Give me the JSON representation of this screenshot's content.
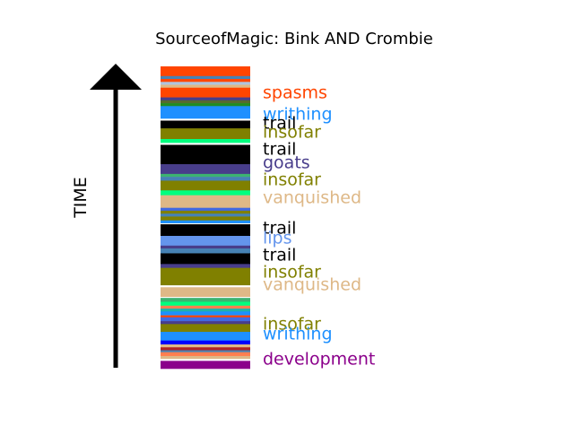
{
  "chart_data": {
    "type": "bar",
    "title": "SourceofMagic: Bink AND Crombie",
    "ylabel": "TIME",
    "xlabel": "",
    "stripes": [
      {
        "color": "#ff4500",
        "h": 10
      },
      {
        "color": "#4682b4",
        "h": 3
      },
      {
        "color": "#ff4500",
        "h": 3
      },
      {
        "color": "#b0c4de",
        "h": 3
      },
      {
        "color": "#deb887",
        "h": 3
      },
      {
        "color": "#ff4500",
        "h": 10
      },
      {
        "color": "#483d8b",
        "h": 3
      },
      {
        "color": "#556b2f",
        "h": 3
      },
      {
        "color": "#228b22",
        "h": 3
      },
      {
        "color": "#1e90ff",
        "h": 13
      },
      {
        "color": "#ffffff",
        "h": 2
      },
      {
        "color": "#000000",
        "h": 8
      },
      {
        "color": "#808000",
        "h": 11
      },
      {
        "color": "#00ff7f",
        "h": 4
      },
      {
        "color": "#ffffff",
        "h": 2
      },
      {
        "color": "#000000",
        "h": 20
      },
      {
        "color": "#483d8b",
        "h": 10
      },
      {
        "color": "#3cb371",
        "h": 3
      },
      {
        "color": "#4682b4",
        "h": 4
      },
      {
        "color": "#808000",
        "h": 10
      },
      {
        "color": "#00ff7f",
        "h": 5
      },
      {
        "color": "#deb887",
        "h": 13
      },
      {
        "color": "#4169e1",
        "h": 3
      },
      {
        "color": "#808000",
        "h": 3
      },
      {
        "color": "#4682b4",
        "h": 3
      },
      {
        "color": "#808000",
        "h": 4
      },
      {
        "color": "#1e90ff",
        "h": 3
      },
      {
        "color": "#ffffff",
        "h": 1
      },
      {
        "color": "#000000",
        "h": 12
      },
      {
        "color": "#6495ed",
        "h": 10
      },
      {
        "color": "#483d8b",
        "h": 3
      },
      {
        "color": "#4682b4",
        "h": 5
      },
      {
        "color": "#000000",
        "h": 11
      },
      {
        "color": "#483d8b",
        "h": 4
      },
      {
        "color": "#808000",
        "h": 18
      },
      {
        "color": "#ffffff",
        "h": 2
      },
      {
        "color": "#deb887",
        "h": 10
      },
      {
        "color": "#ffffff",
        "h": 1
      },
      {
        "color": "#3cb371",
        "h": 4
      },
      {
        "color": "#00ff7f",
        "h": 4
      },
      {
        "color": "#ff7f50",
        "h": 3
      },
      {
        "color": "#20b2aa",
        "h": 3
      },
      {
        "color": "#1e90ff",
        "h": 4
      },
      {
        "color": "#ff4500",
        "h": 2
      },
      {
        "color": "#4169e1",
        "h": 4
      },
      {
        "color": "#483d8b",
        "h": 3
      },
      {
        "color": "#808000",
        "h": 8
      },
      {
        "color": "#1e90ff",
        "h": 9
      },
      {
        "color": "#0000ff",
        "h": 4
      },
      {
        "color": "#deb887",
        "h": 3
      },
      {
        "color": "#b22222",
        "h": 3
      },
      {
        "color": "#4682b4",
        "h": 2
      },
      {
        "color": "#ff7f50",
        "h": 4
      },
      {
        "color": "#deb887",
        "h": 3
      },
      {
        "color": "#ffffff",
        "h": 2
      },
      {
        "color": "#8b008b",
        "h": 8
      }
    ],
    "labels": [
      {
        "text": "spasms",
        "color": "#ff4500",
        "pos": 104
      },
      {
        "text": "writhing",
        "color": "#1e90ff",
        "pos": 128
      },
      {
        "text": "trail",
        "color": "#000000",
        "pos": 138
      },
      {
        "text": "insofar",
        "color": "#808000",
        "pos": 148
      },
      {
        "text": "trail",
        "color": "#000000",
        "pos": 167
      },
      {
        "text": "goats",
        "color": "#483d8b",
        "pos": 182
      },
      {
        "text": "insofar",
        "color": "#808000",
        "pos": 201
      },
      {
        "text": "vanquished",
        "color": "#deb887",
        "pos": 221
      },
      {
        "text": "trail",
        "color": "#000000",
        "pos": 255
      },
      {
        "text": "lips",
        "color": "#6495ed",
        "pos": 266
      },
      {
        "text": "trail",
        "color": "#000000",
        "pos": 285
      },
      {
        "text": "insofar",
        "color": "#808000",
        "pos": 304
      },
      {
        "text": "vanquished",
        "color": "#deb887",
        "pos": 318
      },
      {
        "text": "insofar",
        "color": "#808000",
        "pos": 362
      },
      {
        "text": "writhing",
        "color": "#1e90ff",
        "pos": 373
      },
      {
        "text": "development",
        "color": "#8b008b",
        "pos": 401
      }
    ]
  }
}
